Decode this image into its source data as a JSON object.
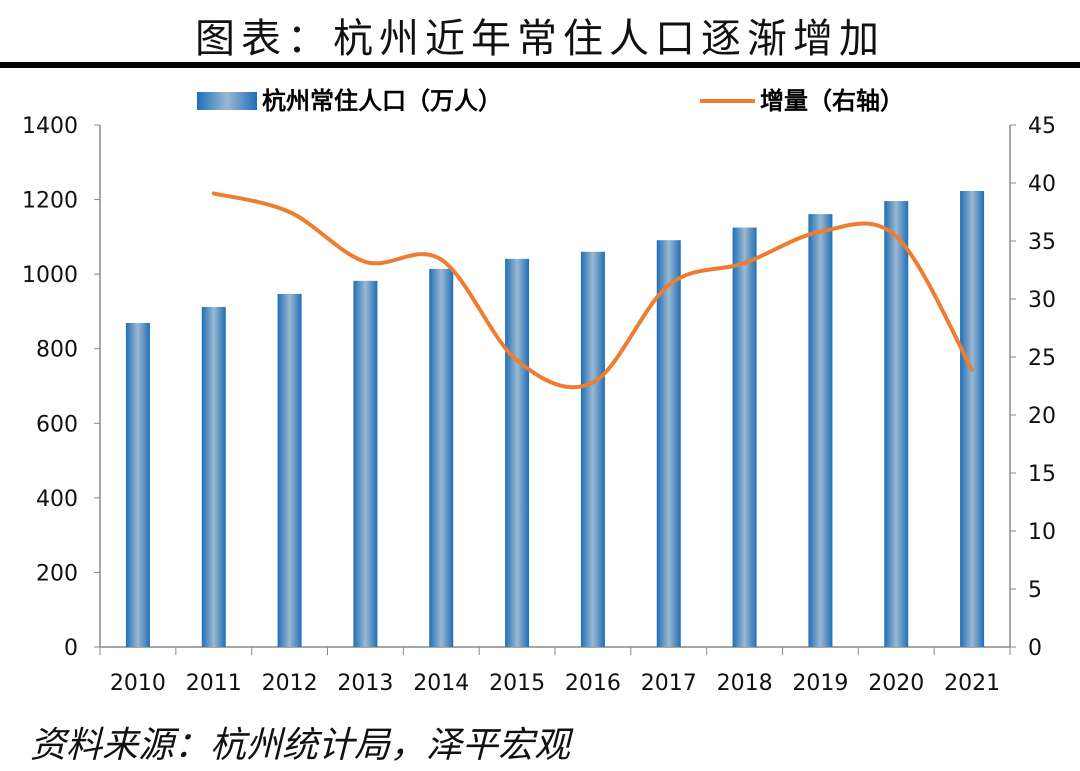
{
  "title": "图表：杭州近年常住人口逐渐增加",
  "source": "资料来源：杭州统计局，泽平宏观",
  "chart_data": {
    "type": "bar+line",
    "categories": [
      "2010",
      "2011",
      "2012",
      "2013",
      "2014",
      "2015",
      "2016",
      "2017",
      "2018",
      "2019",
      "2020",
      "2021"
    ],
    "series": [
      {
        "name": "杭州常住人口（万人）",
        "type": "bar",
        "axis": "left",
        "color": "#2e75b6",
        "values": [
          869,
          912,
          947,
          982,
          1014,
          1041,
          1060,
          1091,
          1125,
          1161,
          1196,
          1223
        ]
      },
      {
        "name": "增量（右轴）",
        "type": "line",
        "axis": "right",
        "color": "#ed7d31",
        "values": [
          null,
          39.1,
          37.5,
          33.2,
          33.4,
          24.7,
          22.8,
          31.2,
          33.1,
          35.8,
          35.4,
          23.9
        ]
      }
    ],
    "ylim_left": [
      0,
      1400
    ],
    "yticks_left": [
      0,
      200,
      400,
      600,
      800,
      1000,
      1200,
      1400
    ],
    "ylim_right": [
      0,
      45
    ],
    "yticks_right": [
      0,
      5,
      10,
      15,
      20,
      25,
      30,
      35,
      40,
      45
    ],
    "grid": false,
    "legend": "top"
  }
}
